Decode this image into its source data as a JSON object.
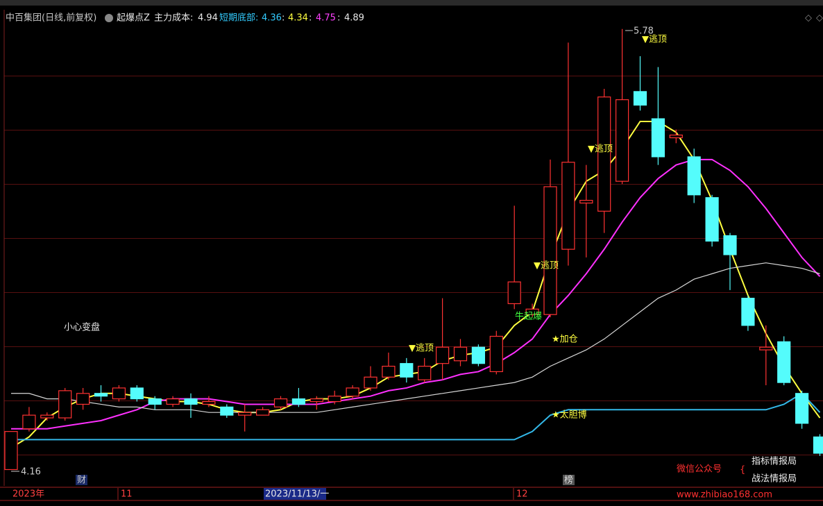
{
  "header": {
    "title": "中百集团(日线,前复权)",
    "indicator": "起爆点Z",
    "main_cost_label": "主力成本:",
    "main_cost": 4.94,
    "bottom_label": "短期底部:",
    "bottom_values": [
      4.36,
      4.34,
      4.75,
      4.89
    ],
    "separator": ":"
  },
  "annotations": [
    "▼逃顶",
    "▼逃顶",
    "▼逃顶",
    "▼逃顶",
    "牛起爆",
    "★加仓",
    "★太胆博",
    "小心变盘"
  ],
  "badges": [
    "财",
    "榜"
  ],
  "watermark": {
    "label": "微信公众号",
    "names": [
      "指标情报局",
      "战法情报局"
    ],
    "url": "www.zhibiao168.com"
  },
  "time_axis": [
    "2023年",
    "11",
    "2023/11/13/一",
    "12"
  ],
  "chart_data": {
    "type": "candlestick",
    "ylim": [
      4.1,
      5.81
    ],
    "max_price": 5.78,
    "min_price": 4.16,
    "up_color": "#ff3232",
    "down_color": "#54fcfc",
    "open": [
      4.16,
      4.31,
      4.35,
      4.35,
      4.4,
      4.44,
      4.42,
      4.46,
      4.42,
      4.4,
      4.42,
      4.4,
      4.39,
      4.36,
      4.36,
      4.39,
      4.42,
      4.41,
      4.41,
      4.43,
      4.46,
      4.5,
      4.55,
      4.49,
      4.55,
      4.56,
      4.61,
      4.52,
      4.77,
      4.73,
      4.73,
      4.97,
      5.14,
      5.11,
      5.22,
      5.55,
      5.45,
      5.38,
      5.31,
      5.16,
      5.02,
      4.79,
      4.6,
      4.63,
      4.44,
      4.28
    ],
    "high": [
      4.3,
      4.39,
      4.37,
      4.46,
      4.46,
      4.47,
      4.47,
      4.47,
      4.43,
      4.43,
      4.44,
      4.43,
      4.4,
      4.4,
      4.39,
      4.43,
      4.46,
      4.43,
      4.45,
      4.47,
      4.54,
      4.59,
      4.57,
      4.57,
      4.79,
      4.64,
      4.62,
      4.67,
      5.13,
      4.77,
      5.3,
      5.73,
      5.28,
      5.56,
      5.78,
      5.68,
      5.64,
      5.41,
      5.34,
      5.17,
      5.03,
      4.8,
      4.69,
      4.65,
      4.45,
      4.29
    ],
    "low": [
      4.16,
      4.3,
      4.34,
      4.34,
      4.38,
      4.41,
      4.41,
      4.41,
      4.38,
      4.39,
      4.35,
      4.39,
      4.35,
      4.3,
      4.36,
      4.38,
      4.39,
      4.38,
      4.4,
      4.42,
      4.45,
      4.49,
      4.48,
      4.48,
      4.49,
      4.54,
      4.54,
      4.51,
      4.75,
      4.72,
      4.72,
      4.91,
      4.94,
      5.03,
      5.21,
      5.48,
      5.28,
      5.36,
      5.14,
      4.98,
      4.82,
      4.67,
      4.47,
      4.47,
      4.31,
      4.21
    ],
    "close": [
      4.3,
      4.36,
      4.36,
      4.45,
      4.44,
      4.43,
      4.46,
      4.42,
      4.4,
      4.42,
      4.4,
      4.41,
      4.36,
      4.37,
      4.38,
      4.42,
      4.4,
      4.42,
      4.43,
      4.46,
      4.5,
      4.54,
      4.5,
      4.54,
      4.61,
      4.61,
      4.55,
      4.65,
      4.85,
      4.75,
      5.2,
      5.29,
      5.15,
      5.53,
      5.52,
      5.5,
      5.31,
      5.39,
      5.17,
      5.0,
      4.95,
      4.69,
      4.61,
      4.48,
      4.33,
      4.22
    ],
    "lines": [
      {
        "color": "#ffff40",
        "values": [
          4.24,
          4.28,
          4.35,
          4.39,
          4.42,
          4.44,
          4.44,
          4.43,
          4.42,
          4.41,
          4.41,
          4.4,
          4.38,
          4.37,
          4.37,
          4.38,
          4.41,
          4.42,
          4.42,
          4.43,
          4.46,
          4.5,
          4.51,
          4.52,
          4.56,
          4.58,
          4.59,
          4.61,
          4.69,
          4.74,
          4.94,
          5.11,
          5.22,
          5.26,
          5.34,
          5.44,
          5.44,
          5.4,
          5.3,
          5.15,
          4.97,
          4.8,
          4.66,
          4.54,
          4.44,
          4.35
        ]
      },
      {
        "color": "#ff30ff",
        "values": [
          4.31,
          4.31,
          4.31,
          4.32,
          4.33,
          4.34,
          4.36,
          4.38,
          4.41,
          4.42,
          4.42,
          4.42,
          4.41,
          4.4,
          4.4,
          4.4,
          4.4,
          4.4,
          4.41,
          4.42,
          4.43,
          4.45,
          4.46,
          4.48,
          4.49,
          4.51,
          4.52,
          4.55,
          4.59,
          4.64,
          4.73,
          4.8,
          4.88,
          4.97,
          5.07,
          5.16,
          5.23,
          5.28,
          5.3,
          5.3,
          5.26,
          5.2,
          5.12,
          5.03,
          4.94,
          4.87
        ]
      },
      {
        "color": "#d8d8d8",
        "values": [
          4.44,
          4.44,
          4.42,
          4.42,
          4.41,
          4.4,
          4.39,
          4.39,
          4.38,
          4.38,
          4.38,
          4.37,
          4.37,
          4.37,
          4.37,
          4.37,
          4.37,
          4.37,
          4.38,
          4.39,
          4.4,
          4.41,
          4.42,
          4.43,
          4.44,
          4.45,
          4.46,
          4.47,
          4.48,
          4.5,
          4.54,
          4.57,
          4.6,
          4.64,
          4.69,
          4.74,
          4.79,
          4.82,
          4.86,
          4.88,
          4.9,
          4.91,
          4.92,
          4.91,
          4.9,
          4.88
        ]
      },
      {
        "color": "#33b8e8",
        "values": [
          4.27,
          4.27,
          4.27,
          4.27,
          4.27,
          4.27,
          4.27,
          4.27,
          4.27,
          4.27,
          4.27,
          4.27,
          4.27,
          4.27,
          4.27,
          4.27,
          4.27,
          4.27,
          4.27,
          4.27,
          4.27,
          4.27,
          4.27,
          4.27,
          4.27,
          4.27,
          4.27,
          4.27,
          4.27,
          4.3,
          4.36,
          4.38,
          4.38,
          4.38,
          4.38,
          4.38,
          4.38,
          4.38,
          4.38,
          4.38,
          4.38,
          4.38,
          4.38,
          4.4,
          4.44,
          4.37
        ]
      }
    ]
  }
}
